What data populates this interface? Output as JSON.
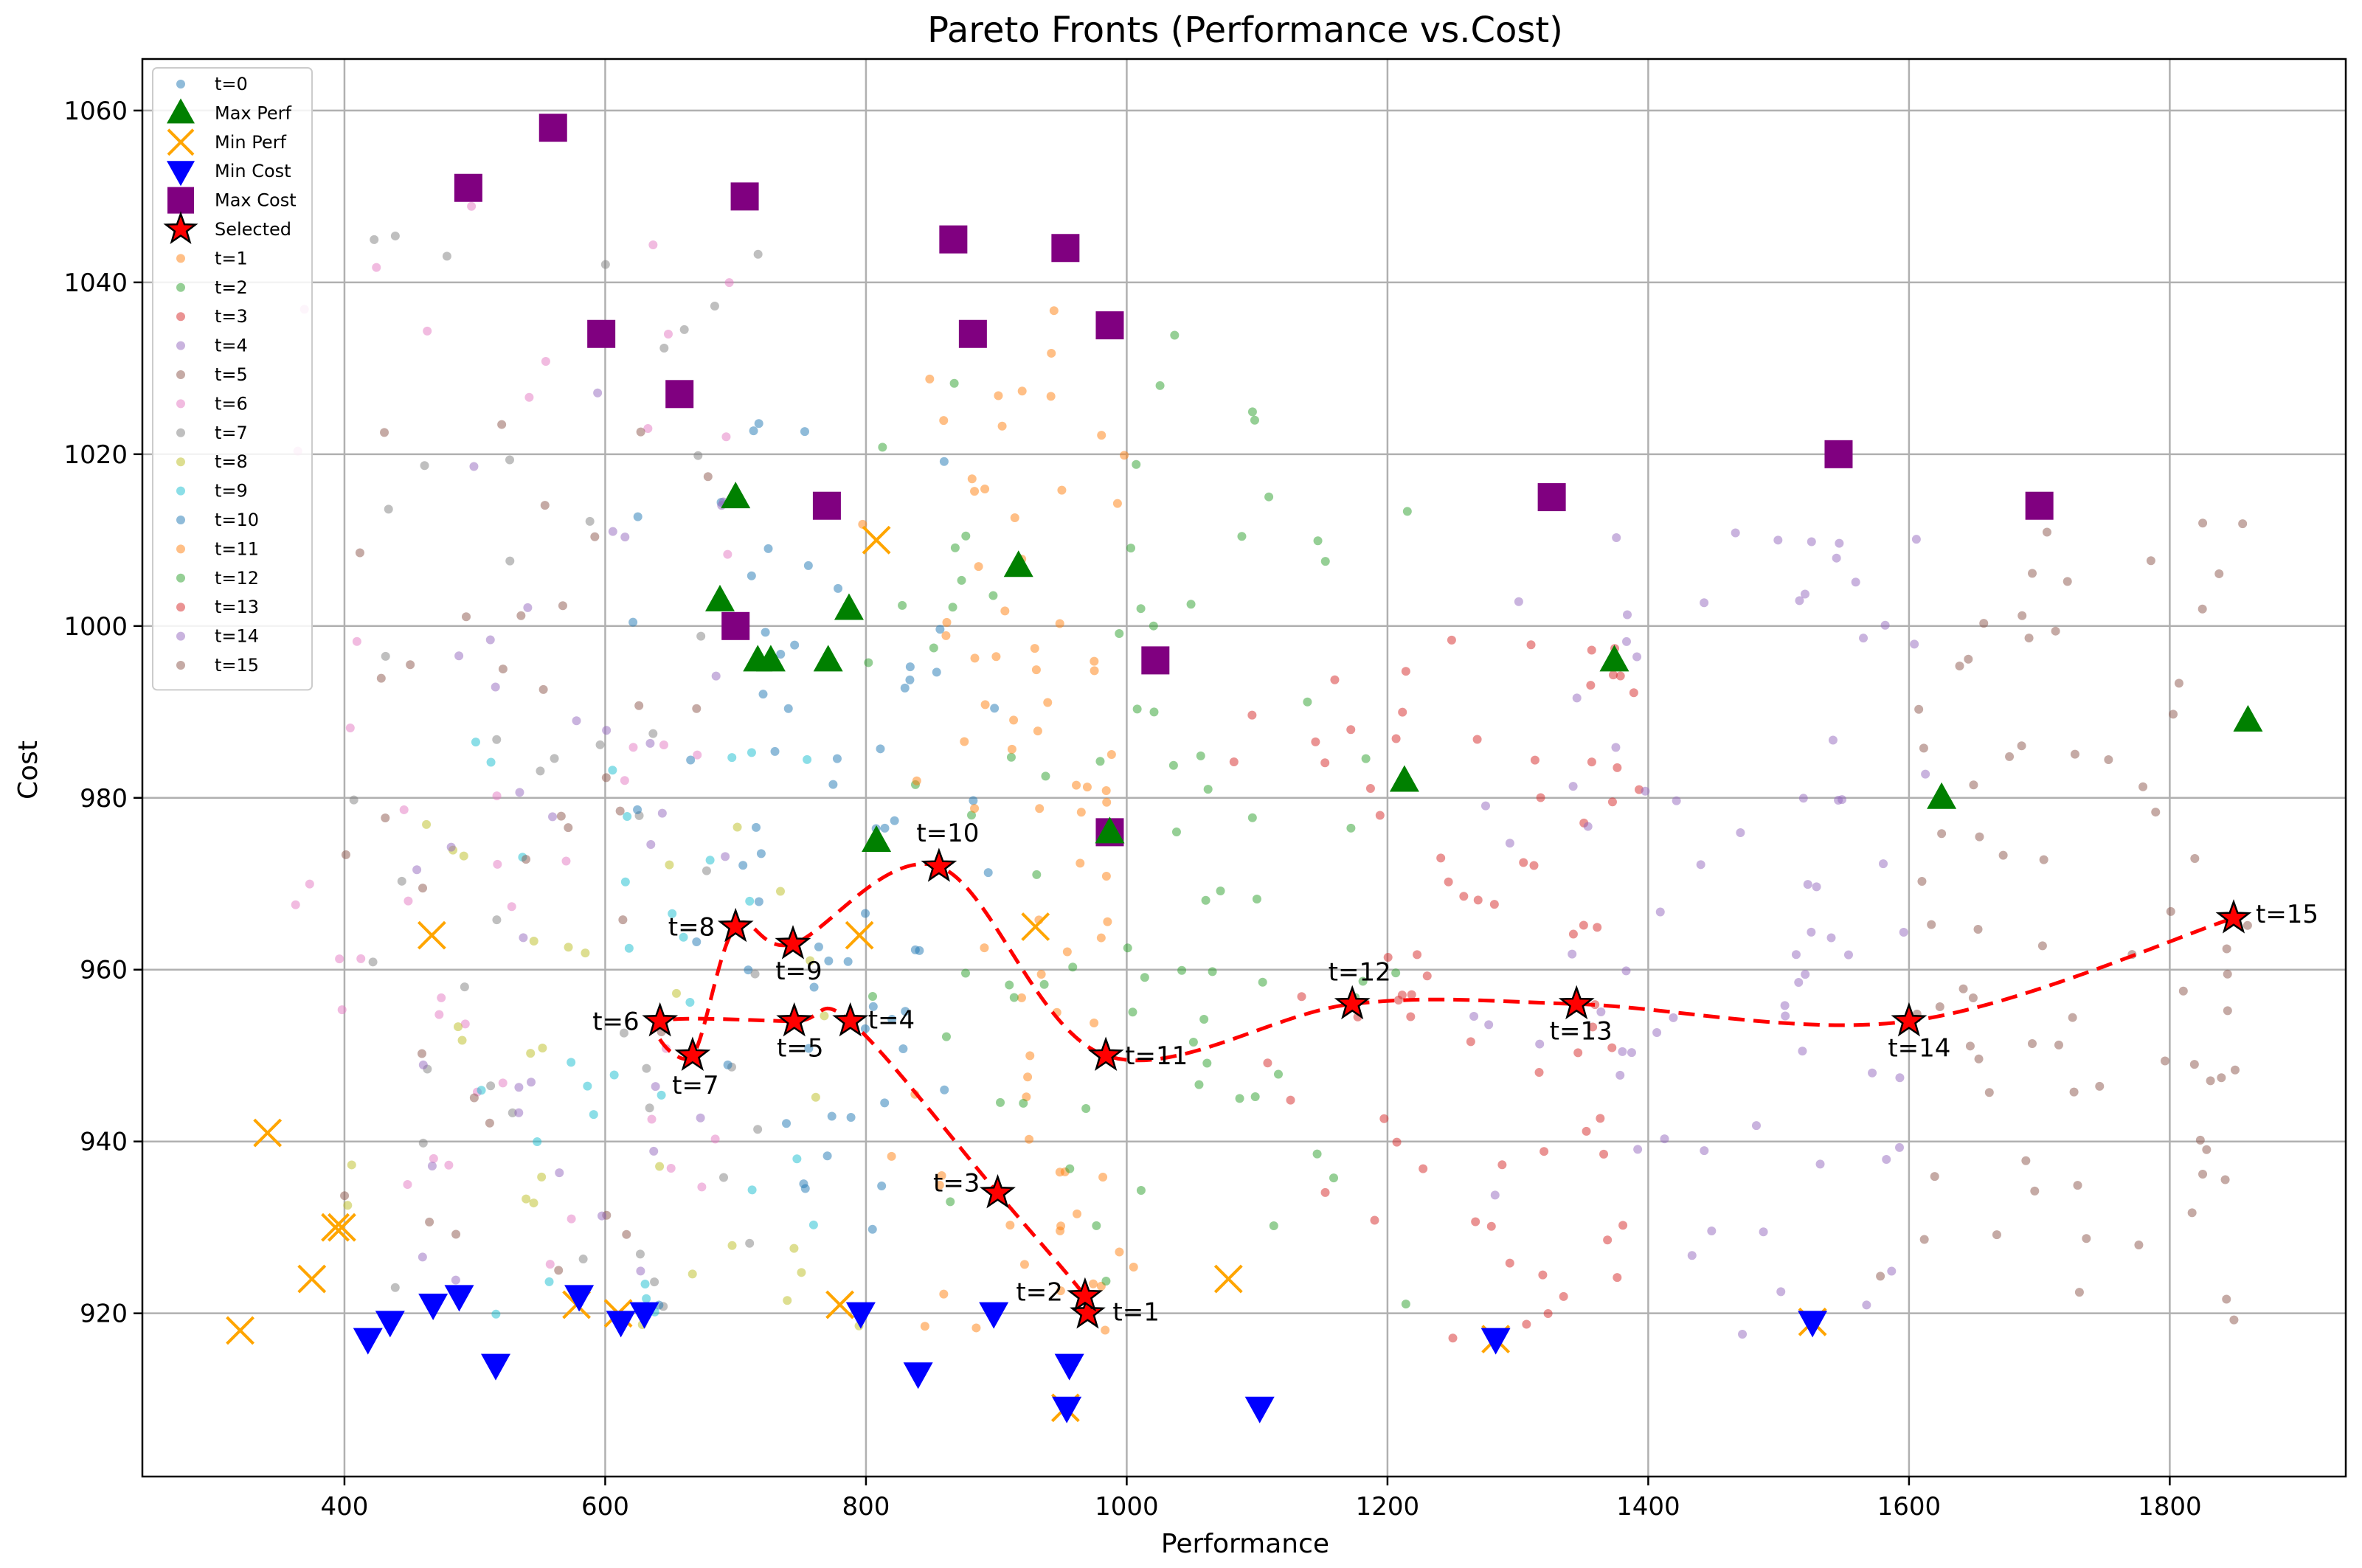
{
  "chart_data": {
    "type": "scatter",
    "title": "Pareto Fronts (Performance vs.Cost)",
    "xlabel": "Performance",
    "ylabel": "Cost",
    "xlim": [
      245,
      1935
    ],
    "ylim": [
      901,
      1066
    ],
    "xticks": [
      400,
      600,
      800,
      1000,
      1200,
      1400,
      1600,
      1800
    ],
    "yticks": [
      920,
      940,
      960,
      980,
      1000,
      1020,
      1040,
      1060
    ],
    "grid": true,
    "legend_position": "upper-left",
    "colors": {
      "t0": "#1f77b4",
      "t1": "#ff7f0e",
      "t2": "#2ca02c",
      "t3": "#d62728",
      "t4": "#9467bd",
      "t5": "#8c564b",
      "t6": "#e377c2",
      "t7": "#7f7f7f",
      "t8": "#bcbd22",
      "t9": "#17becf",
      "t10": "#1f77b4",
      "t11": "#ff7f0e",
      "t12": "#2ca02c",
      "t13": "#d62728",
      "t14": "#9467bd",
      "t15": "#8c564b",
      "max_perf": "#008000",
      "min_perf": "#ffa500",
      "min_cost": "#0000ff",
      "max_cost": "#800080",
      "selected": "#ff0000",
      "path": "#ff0000"
    },
    "legend": [
      {
        "label": "t=0",
        "marker": "dot",
        "color": "#1f77b4"
      },
      {
        "label": "Max Perf",
        "marker": "triangle-up",
        "color": "#008000"
      },
      {
        "label": "Min Perf",
        "marker": "x",
        "color": "#ffa500"
      },
      {
        "label": "Min Cost",
        "marker": "triangle-down",
        "color": "#0000ff"
      },
      {
        "label": "Max Cost",
        "marker": "square",
        "color": "#800080"
      },
      {
        "label": "Selected",
        "marker": "star",
        "color": "#ff0000"
      },
      {
        "label": "t=1",
        "marker": "dot",
        "color": "#ff7f0e"
      },
      {
        "label": "t=2",
        "marker": "dot",
        "color": "#2ca02c"
      },
      {
        "label": "t=3",
        "marker": "dot",
        "color": "#d62728"
      },
      {
        "label": "t=4",
        "marker": "dot",
        "color": "#9467bd"
      },
      {
        "label": "t=5",
        "marker": "dot",
        "color": "#8c564b"
      },
      {
        "label": "t=6",
        "marker": "dot",
        "color": "#e377c2"
      },
      {
        "label": "t=7",
        "marker": "dot",
        "color": "#7f7f7f"
      },
      {
        "label": "t=8",
        "marker": "dot",
        "color": "#bcbd22"
      },
      {
        "label": "t=9",
        "marker": "dot",
        "color": "#17becf"
      },
      {
        "label": "t=10",
        "marker": "dot",
        "color": "#1f77b4"
      },
      {
        "label": "t=11",
        "marker": "dot",
        "color": "#ff7f0e"
      },
      {
        "label": "t=12",
        "marker": "dot",
        "color": "#2ca02c"
      },
      {
        "label": "t=13",
        "marker": "dot",
        "color": "#d62728"
      },
      {
        "label": "t=14",
        "marker": "dot",
        "color": "#9467bd"
      },
      {
        "label": "t=15",
        "marker": "dot",
        "color": "#8c564b"
      }
    ],
    "max_perf": [
      [
        700,
        1015
      ],
      [
        688,
        1003
      ],
      [
        717,
        996
      ],
      [
        727,
        996
      ],
      [
        771,
        996
      ],
      [
        787,
        1002
      ],
      [
        917,
        1007
      ],
      [
        808,
        975
      ],
      [
        987,
        976
      ],
      [
        1213,
        982
      ],
      [
        1374,
        996
      ],
      [
        1625,
        980
      ],
      [
        1860,
        989
      ]
    ],
    "min_perf": [
      [
        320,
        918
      ],
      [
        341,
        941
      ],
      [
        375,
        924
      ],
      [
        393,
        930
      ],
      [
        398,
        930
      ],
      [
        467,
        964
      ],
      [
        808,
        1010
      ],
      [
        930,
        965
      ],
      [
        780,
        921
      ],
      [
        1078,
        924
      ],
      [
        953,
        909
      ],
      [
        1283,
        917
      ],
      [
        1526,
        919
      ],
      [
        578,
        921
      ],
      [
        610,
        920
      ],
      [
        795,
        964
      ]
    ],
    "min_cost": [
      [
        418,
        917
      ],
      [
        435,
        919
      ],
      [
        468,
        921
      ],
      [
        488,
        922
      ],
      [
        516,
        914
      ],
      [
        580,
        922
      ],
      [
        612,
        919
      ],
      [
        630,
        920
      ],
      [
        796,
        920
      ],
      [
        840,
        913
      ],
      [
        898,
        920
      ],
      [
        954,
        909
      ],
      [
        956,
        914
      ],
      [
        1102,
        909
      ],
      [
        1283,
        917
      ],
      [
        1526,
        919
      ]
    ],
    "max_cost": [
      [
        560,
        1058
      ],
      [
        495,
        1051
      ],
      [
        707,
        1050
      ],
      [
        867,
        1045
      ],
      [
        953,
        1044
      ],
      [
        597,
        1034
      ],
      [
        882,
        1034
      ],
      [
        987,
        1035
      ],
      [
        657,
        1027
      ],
      [
        770,
        1014
      ],
      [
        700,
        1000
      ],
      [
        1022,
        996
      ],
      [
        1326,
        1015
      ],
      [
        1546,
        1020
      ],
      [
        1700,
        1014
      ],
      [
        987,
        976
      ]
    ],
    "selected": [
      {
        "label": "t=1",
        "x": 970,
        "y": 920
      },
      {
        "label": "t=2",
        "x": 968,
        "y": 922
      },
      {
        "label": "t=3",
        "x": 901,
        "y": 934
      },
      {
        "label": "t=4",
        "x": 788,
        "y": 954
      },
      {
        "label": "t=5",
        "x": 745,
        "y": 954
      },
      {
        "label": "t=6",
        "x": 642,
        "y": 954
      },
      {
        "label": "t=7",
        "x": 667,
        "y": 950
      },
      {
        "label": "t=8",
        "x": 700,
        "y": 965
      },
      {
        "label": "t=9",
        "x": 744,
        "y": 963
      },
      {
        "label": "t=10",
        "x": 856,
        "y": 972
      },
      {
        "label": "t=11",
        "x": 984,
        "y": 950
      },
      {
        "label": "t=12",
        "x": 1173,
        "y": 956
      },
      {
        "label": "t=13",
        "x": 1345,
        "y": 956
      },
      {
        "label": "t=14",
        "x": 1600,
        "y": 954
      },
      {
        "label": "t=15",
        "x": 1849,
        "y": 966
      }
    ],
    "path_order": [
      "t=1",
      "t=2",
      "t=3",
      "t=4",
      "t=5",
      "t=6",
      "t=7",
      "t=8",
      "t=9",
      "t=10",
      "t=11",
      "t=12",
      "t=13",
      "t=14",
      "t=15"
    ],
    "scatter_clusters": [
      {
        "name": "t=0",
        "color": "#1f77b4",
        "x_range": [
          700,
          860
        ],
        "y_range": [
          930,
          1000
        ],
        "count": 30
      },
      {
        "name": "t=1",
        "color": "#ff7f0e",
        "x_range": [
          880,
          1000
        ],
        "y_range": [
          917,
          1037
        ],
        "count": 45
      },
      {
        "name": "t=2",
        "color": "#2ca02c",
        "x_range": [
          780,
          1100
        ],
        "y_range": [
          918,
          1038
        ],
        "count": 45
      },
      {
        "name": "t=3",
        "color": "#d62728",
        "x_range": [
          1080,
          1380
        ],
        "y_range": [
          917,
          1000
        ],
        "count": 40
      },
      {
        "name": "t=4",
        "color": "#9467bd",
        "x_range": [
          1260,
          1620
        ],
        "y_range": [
          917,
          1012
        ],
        "count": 40
      },
      {
        "name": "t=5",
        "color": "#8c564b",
        "x_range": [
          1570,
          1860
        ],
        "y_range": [
          919,
          1012
        ],
        "count": 40
      },
      {
        "name": "t=6",
        "color": "#e377c2",
        "x_range": [
          350,
          700
        ],
        "y_range": [
          925,
          1051
        ],
        "count": 45
      },
      {
        "name": "t=7",
        "color": "#7f7f7f",
        "x_range": [
          400,
          720
        ],
        "y_range": [
          920,
          1046
        ],
        "count": 45
      },
      {
        "name": "t=8",
        "color": "#bcbd22",
        "x_range": [
          400,
          800
        ],
        "y_range": [
          918,
          985
        ],
        "count": 30
      },
      {
        "name": "t=9",
        "color": "#17becf",
        "x_range": [
          500,
          800
        ],
        "y_range": [
          918,
          990
        ],
        "count": 30
      },
      {
        "name": "t=10",
        "color": "#1f77b4",
        "x_range": [
          620,
          900
        ],
        "y_range": [
          917,
          1024
        ],
        "count": 35
      },
      {
        "name": "t=11",
        "color": "#ff7f0e",
        "x_range": [
          790,
          1010
        ],
        "y_range": [
          918,
          1030
        ],
        "count": 35
      },
      {
        "name": "t=12",
        "color": "#2ca02c",
        "x_range": [
          1000,
          1220
        ],
        "y_range": [
          920,
          1025
        ],
        "count": 35
      },
      {
        "name": "t=13",
        "color": "#d62728",
        "x_range": [
          1180,
          1400
        ],
        "y_range": [
          920,
          1000
        ],
        "count": 35
      },
      {
        "name": "t=14",
        "color": "#9467bd",
        "x_range": [
          1380,
          1600
        ],
        "y_range": [
          918,
          1012
        ],
        "count": 35
      },
      {
        "name": "t=15",
        "color": "#8c564b",
        "x_range": [
          1600,
          1860
        ],
        "y_range": [
          919,
          1012
        ],
        "count": 35
      },
      {
        "name": "t=5-left",
        "color": "#8c564b",
        "x_range": [
          400,
          680
        ],
        "y_range": [
          920,
          1024
        ],
        "count": 35
      },
      {
        "name": "t=4-left",
        "color": "#9467bd",
        "x_range": [
          450,
          700
        ],
        "y_range": [
          921,
          1028
        ],
        "count": 35
      }
    ]
  }
}
